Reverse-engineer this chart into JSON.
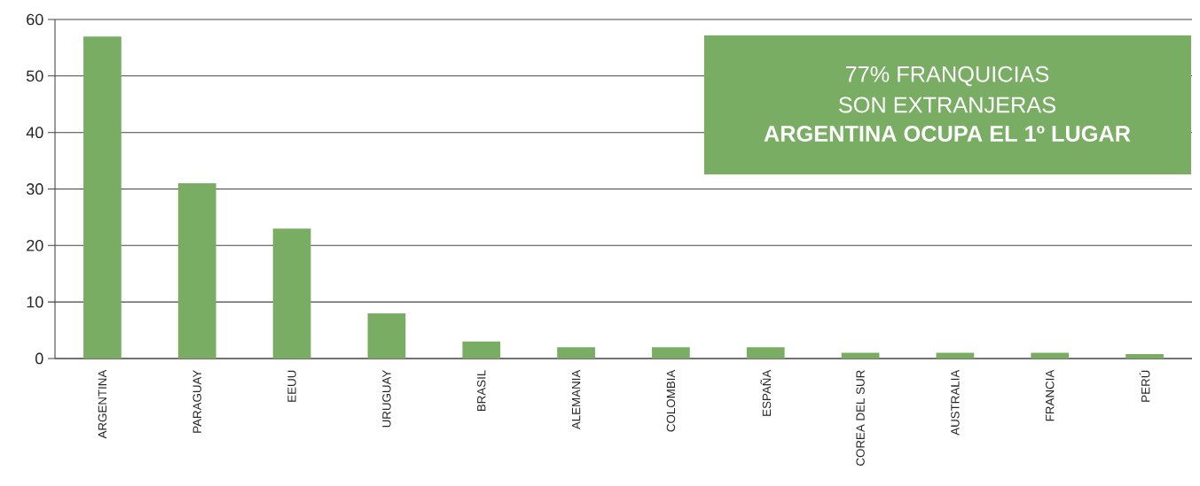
{
  "chart_data": {
    "type": "bar",
    "categories": [
      "ARGENTINA",
      "PARAGUAY",
      "EEUU",
      "URUGUAY",
      "BRASIL",
      "ALEMANIA",
      "COLOMBIA",
      "ESPAÑA",
      "COREA DEL SUR",
      "AUSTRALIA",
      "FRANCIA",
      "PERÚ"
    ],
    "values": [
      57,
      31,
      23,
      8,
      3,
      2,
      2,
      2,
      1,
      1,
      1,
      0.8
    ],
    "color": "#79ad63",
    "ylim": [
      0,
      60
    ],
    "yticks": [
      0,
      10,
      20,
      30,
      40,
      50,
      60
    ],
    "grid": "y",
    "annotations": [
      "77% FRANQUICIAS",
      "SON EXTRANJERAS",
      "ARGENTINA OCUPA EL 1º LUGAR"
    ]
  }
}
